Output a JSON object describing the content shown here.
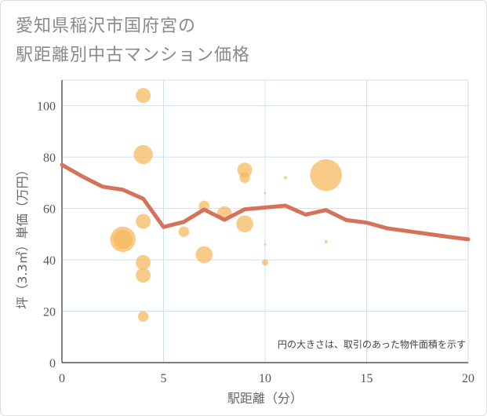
{
  "title_lines": [
    "愛知県稲沢市国府宮の",
    "駅距離別中古マンション価格"
  ],
  "chart_data": {
    "type": "scatter",
    "title": "愛知県稲沢市国府宮の駅距離別中古マンション価格",
    "xlabel": "駅距離（分）",
    "ylabel": "坪（3.3㎡）単価（万円）",
    "xlim": [
      0,
      20
    ],
    "ylim": [
      0,
      110
    ],
    "x_ticks": [
      0,
      5,
      10,
      15,
      20
    ],
    "y_ticks": [
      0,
      20,
      40,
      60,
      80,
      100
    ],
    "grid": true,
    "note": "円の大きさは、取引のあった物件面積を示す",
    "bubble_color": "#f5b95a",
    "line_color": "#d4725a",
    "bubbles": [
      {
        "x": 3,
        "y": 48,
        "size": 12
      },
      {
        "x": 3,
        "y": 48,
        "size": 9
      },
      {
        "x": 4,
        "y": 104,
        "size": 7
      },
      {
        "x": 4,
        "y": 81,
        "size": 9
      },
      {
        "x": 4,
        "y": 55,
        "size": 7
      },
      {
        "x": 4,
        "y": 39,
        "size": 7
      },
      {
        "x": 4,
        "y": 34,
        "size": 7
      },
      {
        "x": 4,
        "y": 18,
        "size": 5
      },
      {
        "x": 6,
        "y": 51,
        "size": 5
      },
      {
        "x": 7,
        "y": 61,
        "size": 5
      },
      {
        "x": 7,
        "y": 42,
        "size": 8
      },
      {
        "x": 8,
        "y": 58,
        "size": 7
      },
      {
        "x": 9,
        "y": 75,
        "size": 7
      },
      {
        "x": 9,
        "y": 72,
        "size": 5
      },
      {
        "x": 9,
        "y": 54,
        "size": 8
      },
      {
        "x": 10,
        "y": 66,
        "size": 1
      },
      {
        "x": 10,
        "y": 46,
        "size": 1
      },
      {
        "x": 10,
        "y": 39,
        "size": 3
      },
      {
        "x": 11,
        "y": 72,
        "size": 1.5
      },
      {
        "x": 13,
        "y": 73,
        "size": 15
      },
      {
        "x": 13,
        "y": 47,
        "size": 1.5
      }
    ],
    "trend": {
      "x": [
        0,
        1,
        2,
        3,
        4,
        5,
        6,
        7,
        8,
        9,
        10,
        11,
        12,
        13,
        14,
        15,
        16,
        17,
        18,
        19,
        20
      ],
      "y": [
        77,
        72.5,
        68.5,
        67.3,
        63.8,
        52.8,
        54.8,
        59.6,
        55.6,
        59.7,
        60.4,
        61.1,
        57.6,
        59.4,
        55.5,
        54.5,
        52.3,
        51.2,
        50.1,
        49.0,
        48.0
      ]
    }
  }
}
